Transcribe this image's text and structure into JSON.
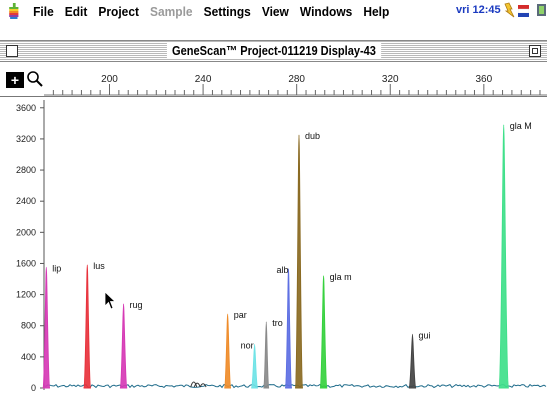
{
  "menubar": {
    "items": [
      {
        "label": "File"
      },
      {
        "label": "Edit"
      },
      {
        "label": "Project"
      },
      {
        "label": "Sample",
        "dim": true
      },
      {
        "label": "Settings"
      },
      {
        "label": "View"
      },
      {
        "label": "Windows"
      },
      {
        "label": "Help"
      }
    ],
    "clock": "vri 12:45"
  },
  "window": {
    "title": "GeneScan™ Project-011219 Display-43"
  },
  "colors": {
    "grid_bg": "#ffffff",
    "baseline": "#1e6b8a",
    "peaks": {
      "lip": "#d63ab5",
      "lus": "#e8323c",
      "rug": "#d63ab5",
      "par": "#ef8c2a",
      "nor": "#6fe3e6",
      "tro": "#8a8a8a",
      "alb": "#5d6fe3",
      "dub": "#8a6a22",
      "glam_small": "#36d13e",
      "gui": "#444444",
      "glaM": "#3fe08a"
    }
  },
  "chart_data": {
    "type": "line",
    "title": "",
    "xlabel": "",
    "ylabel": "",
    "xlim": [
      172,
      387
    ],
    "ylim": [
      0,
      3700
    ],
    "x_ticks": [
      200,
      240,
      280,
      320,
      360
    ],
    "y_ticks": [
      0,
      400,
      800,
      1200,
      1600,
      2000,
      2400,
      2800,
      3200,
      3600
    ],
    "grid": false,
    "series": [
      {
        "name": "lip",
        "peak_x": 173,
        "peak_y": 1550,
        "width": 1.3,
        "label_dx": 2,
        "label_dy": 0
      },
      {
        "name": "lus",
        "peak_x": 190.5,
        "peak_y": 1580,
        "width": 1.3,
        "label_dx": 2,
        "label_dy": 0
      },
      {
        "name": "rug",
        "peak_x": 206,
        "peak_y": 1080,
        "width": 1.3,
        "label_dx": 2,
        "label_dy": 0
      },
      {
        "name": "par",
        "peak_x": 250.5,
        "peak_y": 950,
        "width": 1.2,
        "label_dx": 2,
        "label_dy": 0
      },
      {
        "name": "nor",
        "peak_x": 262,
        "peak_y": 560,
        "width": 1.2,
        "label_dx": -18,
        "label_dy": 0
      },
      {
        "name": "tro",
        "peak_x": 267,
        "peak_y": 850,
        "width": 1.0,
        "label_dx": 2,
        "label_dy": 0
      },
      {
        "name": "alb",
        "peak_x": 276.5,
        "peak_y": 1530,
        "width": 1.2,
        "label_dx": -16,
        "label_dy": 0
      },
      {
        "name": "dub",
        "peak_x": 281,
        "peak_y": 3250,
        "width": 1.4,
        "label_dx": 2,
        "label_dy": 0
      },
      {
        "name": "gla m",
        "peak_x": 291.5,
        "peak_y": 1440,
        "width": 1.3,
        "label_dx": 2,
        "label_dy": 0
      },
      {
        "name": "gui",
        "peak_x": 329.5,
        "peak_y": 690,
        "width": 1.3,
        "label_dx": 2,
        "label_dy": 0
      },
      {
        "name": "gla M",
        "peak_x": 368.5,
        "peak_y": 3380,
        "width": 1.8,
        "label_dx": 2,
        "label_dy": 0
      }
    ],
    "small_bumps": [
      {
        "x": 236,
        "y": 90
      },
      {
        "x": 237.5,
        "y": 60
      },
      {
        "x": 240,
        "y": 45
      }
    ]
  }
}
